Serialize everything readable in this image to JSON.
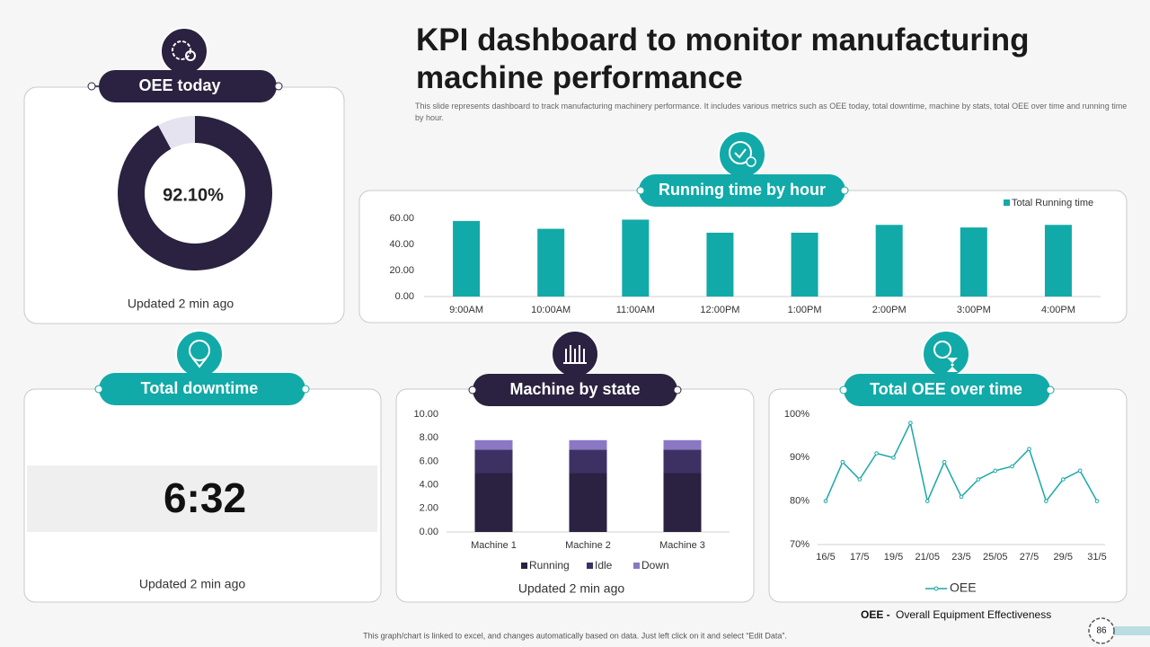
{
  "title": "KPI dashboard to monitor manufacturing machine performance",
  "description": "This slide represents dashboard to track manufacturing machinery performance. It includes various metrics such as OEE  today, total downtime, machine by stats, total OEE  over time and running time  by hour.",
  "downtime": {
    "title": "Total downtime",
    "value": "6:32",
    "updated": "Updated 2 min ago"
  },
  "oee_note": {
    "term": "OEE -",
    "text": "Overall  Equipment  Effectiveness"
  },
  "footer_note": "This graph/chart is linked to excel, and changes automatically based on data. Just left click on it and select “Edit Data”.",
  "page_number": "86",
  "chart_data": [
    {
      "type": "pie",
      "title": "OEE today",
      "values": [
        92.1,
        7.9
      ],
      "value_labels": [
        "92.10%",
        null
      ],
      "colors": [
        "#2a2240",
        "#e6e3f0"
      ],
      "updated": "Updated 2 min ago"
    },
    {
      "type": "bar",
      "title": "Running time by hour",
      "categories": [
        "9:00AM",
        "10:00AM",
        "11:00AM",
        "12:00PM",
        "1:00PM",
        "2:00PM",
        "3:00PM",
        "4:00PM"
      ],
      "series": [
        {
          "name": "Total Running time",
          "color": "#12aaa8",
          "values": [
            58,
            52,
            59,
            49,
            49,
            55,
            53,
            55
          ]
        }
      ],
      "ylim": [
        0,
        60
      ],
      "yticks": [
        {
          "value": 0,
          "label": "0.00"
        },
        {
          "value": 20,
          "label": "20.00"
        },
        {
          "value": 40,
          "label": "40.00"
        },
        {
          "value": 60,
          "label": "60.00"
        }
      ],
      "legend": "top-right"
    },
    {
      "type": "stacked_bar",
      "title": "Machine by state",
      "categories": [
        "Machine 1",
        "Machine 2",
        "Machine 3"
      ],
      "series": [
        {
          "name": "Running",
          "color": "#2a2240",
          "values": [
            5,
            5,
            5
          ]
        },
        {
          "name": "Idle",
          "color": "#3d3163",
          "values": [
            2,
            2,
            2
          ]
        },
        {
          "name": "Down",
          "color": "#8a78c4",
          "values": [
            0.8,
            0.8,
            0.8
          ]
        }
      ],
      "ylim": [
        0,
        10
      ],
      "yticks": [
        {
          "value": 0,
          "label": "0.00"
        },
        {
          "value": 2,
          "label": "2.00"
        },
        {
          "value": 4,
          "label": "4.00"
        },
        {
          "value": 6,
          "label": "6.00"
        },
        {
          "value": 8,
          "label": "8.00"
        },
        {
          "value": 10,
          "label": "10.00"
        }
      ],
      "legend": "bottom",
      "updated": "Updated 2 min ago"
    },
    {
      "type": "line",
      "title": "Total OEE over time",
      "categories": [
        "16/5",
        null,
        "17/5",
        null,
        "19/5",
        null,
        "21/05",
        null,
        "23/5",
        null,
        "25/05",
        null,
        "27/5",
        null,
        "29/5",
        null,
        "31/5"
      ],
      "series": [
        {
          "name": "OEE",
          "color": "#1aa8a8",
          "values": [
            80,
            89,
            85,
            91,
            90,
            98,
            80,
            89,
            81,
            85,
            87,
            88,
            92,
            80,
            85,
            87,
            80
          ]
        }
      ],
      "ylim": [
        70,
        100
      ],
      "yticks": [
        {
          "value": 70,
          "label": "70%"
        },
        {
          "value": 80,
          "label": "80%"
        },
        {
          "value": 90,
          "label": "90%"
        },
        {
          "value": 100,
          "label": "100%"
        }
      ],
      "legend": "bottom"
    }
  ]
}
